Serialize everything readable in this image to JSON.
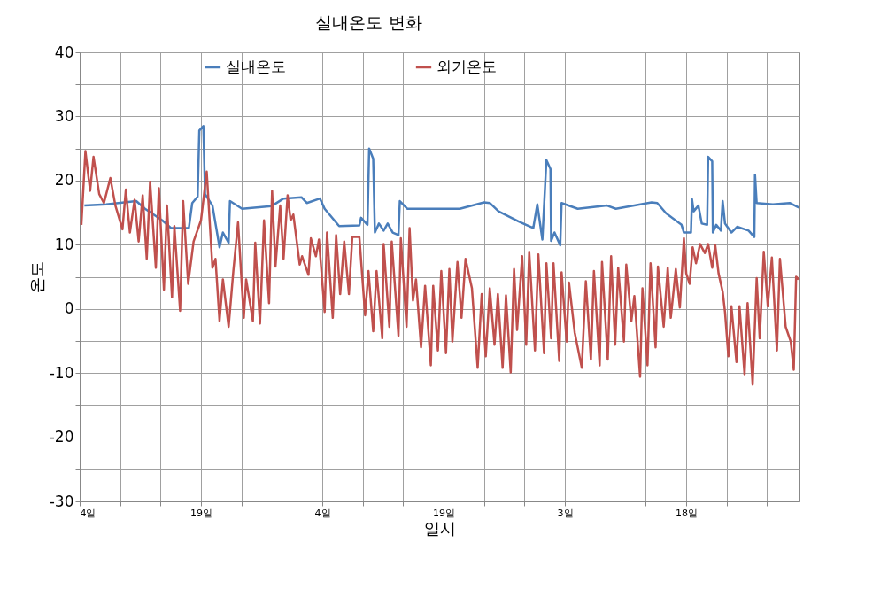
{
  "chart_data": {
    "type": "line",
    "title": "실내온도 변화",
    "xlabel": "일시",
    "ylabel": "온도",
    "xlim": [
      "--09-04",
      "--12-02"
    ],
    "xticks": [
      {
        "value": "--09-04",
        "label": "4일"
      },
      {
        "value": "--09-09",
        "label": null
      },
      {
        "value": "--09-14",
        "label": null
      },
      {
        "value": "--09-19",
        "label": "19일"
      },
      {
        "value": "--09-24",
        "label": null
      },
      {
        "value": "--09-29",
        "label": null
      },
      {
        "value": "--10-04",
        "label": "4일"
      },
      {
        "value": "--10-09",
        "label": null
      },
      {
        "value": "--10-14",
        "label": null
      },
      {
        "value": "--10-19",
        "label": "19일"
      },
      {
        "value": "--10-24",
        "label": null
      },
      {
        "value": "--10-29",
        "label": null
      },
      {
        "value": "--11-03",
        "label": "3일"
      },
      {
        "value": "--11-08",
        "label": null
      },
      {
        "value": "--11-13",
        "label": null
      },
      {
        "value": "--11-18",
        "label": "18일"
      },
      {
        "value": "--11-23",
        "label": null
      },
      {
        "value": "--11-28",
        "label": null
      }
    ],
    "ylim": [
      -30,
      40
    ],
    "yticks": [
      -30,
      {
        "value": -25,
        "label": null
      },
      -20,
      {
        "value": -15,
        "label": null
      },
      -10,
      {
        "value": -5,
        "label": null
      },
      0,
      {
        "value": 5,
        "label": null
      },
      10,
      {
        "value": 15,
        "label": null
      },
      20,
      {
        "value": 25,
        "label": null
      },
      30,
      {
        "value": 35,
        "label": null
      },
      40
    ],
    "grid": true,
    "legend": "top",
    "line_style": "solid",
    "marker": "none",
    "series": [
      {
        "name": "실내온도",
        "color": "#4a7ebb",
        "x": [
          "--09-04T14:00",
          "--09-07T07:00",
          "--09-11T00:00",
          "--09-12T02:00",
          "--09-14T05:00",
          "--09-15T07:00",
          "--09-17T12:00",
          "--09-17T22:00",
          "--09-18T14:00",
          "--09-18T19:00",
          "--09-19T07:00",
          "--09-19T12:00",
          "--09-20T10:00",
          "--09-21T07:00",
          "--09-21T17:00",
          "--09-22T10:00",
          "--09-22T14:00",
          "--09-24T02:00",
          "--09-27T17:00",
          "--09-29T05:00",
          "--10-01T10:00",
          "--10-02T02:00",
          "--10-03T17:00",
          "--10-04T07:00",
          "--10-06T02:00",
          "--10-08T14:00",
          "--10-08T19:00",
          "--10-09T14:00",
          "--10-09T19:00",
          "--10-10T07:00",
          "--10-10T12:00",
          "--10-11T00:00",
          "--10-11T14:00",
          "--10-12T02:00",
          "--10-12T17:00",
          "--10-13T10:00",
          "--10-13T14:00",
          "--10-14T12:00",
          "--10-18T12:00",
          "--10-21T00:00",
          "--10-24T00:00",
          "--10-24T17:00",
          "--10-25T19:00",
          "--10-28T07:00",
          "--10-30T02:00",
          "--10-30T14:00",
          "--10-31T05:00",
          "--10-31T17:00",
          "--11-01T05:00",
          "--11-01T07:00",
          "--11-01T17:00",
          "--11-02T10:00",
          "--11-02T14:00",
          "--11-04T14:00",
          "--11-08T05:00",
          "--11-09T07:00",
          "--11-13T17:00",
          "--11-14T10:00",
          "--11-15T12:00",
          "--11-17T10:00",
          "--11-17T17:00",
          "--11-18T14:00",
          "--11-18T17:00",
          "--11-18T22:00",
          "--11-19T12:00",
          "--11-19T22:00",
          "--11-20T14:00",
          "--11-20T17:00",
          "--11-21T05:00",
          "--11-21T07:00",
          "--11-21T17:00",
          "--11-22T07:00",
          "--11-22T12:00",
          "--11-22T19:00",
          "--11-23T14:00",
          "--11-24T07:00",
          "--11-25T17:00",
          "--11-26T10:00",
          "--11-26T12:00",
          "--11-26T17:00",
          "--11-28T17:00",
          "--11-30T19:00",
          "--12-01T22:00"
        ],
        "values": [
          16.1,
          16.3,
          16.8,
          15.6,
          13.8,
          12.6,
          12.6,
          16.5,
          17.5,
          27.8,
          28.5,
          17.9,
          16.1,
          9.6,
          11.9,
          10.3,
          16.8,
          15.6,
          16.0,
          17.2,
          17.4,
          16.5,
          17.2,
          15.6,
          12.9,
          13.0,
          14.2,
          13.1,
          25.0,
          23.4,
          11.9,
          13.3,
          12.2,
          13.3,
          11.9,
          11.5,
          16.8,
          15.6,
          15.6,
          15.6,
          16.6,
          16.5,
          15.2,
          13.6,
          12.6,
          16.3,
          10.8,
          23.2,
          21.8,
          10.6,
          11.9,
          9.9,
          16.5,
          15.6,
          16.1,
          15.6,
          16.6,
          16.5,
          14.9,
          13.1,
          11.9,
          11.9,
          17.1,
          15.2,
          16.1,
          13.3,
          13.1,
          23.7,
          23.0,
          11.9,
          13.1,
          12.2,
          16.8,
          13.3,
          11.9,
          12.8,
          12.2,
          11.2,
          20.9,
          16.5,
          16.3,
          16.5,
          15.8
        ]
      },
      {
        "name": "외기온도",
        "color": "#c0504d",
        "x": [
          "--09-04T05:00",
          "--09-04T17:00",
          "--09-05T07:00",
          "--09-05T17:00",
          "--09-06T10:00",
          "--09-07T00:00",
          "--09-07T19:00",
          "--09-08T10:00",
          "--09-09T07:00",
          "--09-09T17:00",
          "--09-10T05:00",
          "--09-10T19:00",
          "--09-11T07:00",
          "--09-11T19:00",
          "--09-12T07:00",
          "--09-12T17:00",
          "--09-13T10:00",
          "--09-13T19:00",
          "--09-14T10:00",
          "--09-14T19:00",
          "--09-15T10:00",
          "--09-15T17:00",
          "--09-16T10:00",
          "--09-16T19:00",
          "--09-17T10:00",
          "--09-18T02:00",
          "--09-19T00:00",
          "--09-19T17:00",
          "--09-20T10:00",
          "--09-20T19:00",
          "--09-21T07:00",
          "--09-21T17:00",
          "--09-22T10:00",
          "--09-23T00:00",
          "--09-23T14:00",
          "--09-24T07:00",
          "--09-24T14:00",
          "--09-25T10:00",
          "--09-25T17:00",
          "--09-26T07:00",
          "--09-26T19:00",
          "--09-27T10:00",
          "--09-27T19:00",
          "--09-28T05:00",
          "--09-28T19:00",
          "--09-29T05:00",
          "--09-29T17:00",
          "--09-30T02:00",
          "--09-30T10:00",
          "--10-01T05:00",
          "--10-01T12:00",
          "--10-02T07:00",
          "--10-02T14:00",
          "--10-03T05:00",
          "--10-03T14:00",
          "--10-04T07:00",
          "--10-04T14:00",
          "--10-05T07:00",
          "--10-05T17:00",
          "--10-06T05:00",
          "--10-06T17:00",
          "--10-07T07:00",
          "--10-07T17:00",
          "--10-08T14:00",
          "--10-09T07:00",
          "--10-09T17:00",
          "--10-10T07:00",
          "--10-10T17:00",
          "--10-11T10:00",
          "--10-11T14:00",
          "--10-12T07:00",
          "--10-12T14:00",
          "--10-13T10:00",
          "--10-13T17:00",
          "--10-14T10:00",
          "--10-14T19:00",
          "--10-15T05:00",
          "--10-15T14:00",
          "--10-16T05:00",
          "--10-16T17:00",
          "--10-17T10:00",
          "--10-17T17:00",
          "--10-18T07:00",
          "--10-18T17:00",
          "--10-19T07:00",
          "--10-19T17:00",
          "--10-20T02:00",
          "--10-20T17:00",
          "--10-21T05:00",
          "--10-21T17:00",
          "--10-22T12:00",
          "--10-23T05:00",
          "--10-23T17:00",
          "--10-24T05:00",
          "--10-24T17:00",
          "--10-25T07:00",
          "--10-25T17:00",
          "--10-26T07:00",
          "--10-26T17:00",
          "--10-27T07:00",
          "--10-27T17:00",
          "--10-28T02:00",
          "--10-28T17:00",
          "--10-29T05:00",
          "--10-29T14:00",
          "--10-30T07:00",
          "--10-30T17:00",
          "--10-31T10:00",
          "--10-31T17:00",
          "--11-01T07:00",
          "--11-01T14:00",
          "--11-02T07:00",
          "--11-02T14:00",
          "--11-03T05:00",
          "--11-03T12:00",
          "--11-04T05:00",
          "--11-05T02:00",
          "--11-05T14:00",
          "--11-06T05:00",
          "--11-06T14:00",
          "--11-07T07:00",
          "--11-07T14:00",
          "--11-08T07:00",
          "--11-08T17:00",
          "--11-09T05:00",
          "--11-09T14:00",
          "--11-10T07:00",
          "--11-10T14:00",
          "--11-11T05:00",
          "--11-11T14:00",
          "--11-12T07:00",
          "--11-12T14:00",
          "--11-13T05:00",
          "--11-13T14:00",
          "--11-14T05:00",
          "--11-14T12:00",
          "--11-15T05:00",
          "--11-15T17:00",
          "--11-16T02:00",
          "--11-16T17:00",
          "--11-17T05:00",
          "--11-17T17:00",
          "--11-18T00:00",
          "--11-18T10:00",
          "--11-18T19:00",
          "--11-19T05:00",
          "--11-19T17:00",
          "--11-20T07:00",
          "--11-20T17:00",
          "--11-21T05:00",
          "--11-21T14:00",
          "--11-22T00:00",
          "--11-22T12:00",
          "--11-22T19:00",
          "--11-23T05:00",
          "--11-23T14:00",
          "--11-24T05:00",
          "--11-24T14:00",
          "--11-25T05:00",
          "--11-25T14:00",
          "--11-26T05:00",
          "--11-26T17:00",
          "--11-27T02:00",
          "--11-27T14:00",
          "--11-28T02:00",
          "--11-28T14:00",
          "--11-29T05:00",
          "--11-29T14:00",
          "--11-30T07:00",
          "--11-30T22:00",
          "--12-01T07:00",
          "--12-01T14:00",
          "--12-01T22:00"
        ],
        "values": [
          13.1,
          24.6,
          18.4,
          23.7,
          17.9,
          16.5,
          20.4,
          16.1,
          12.4,
          18.6,
          11.9,
          17.0,
          10.5,
          17.7,
          7.8,
          19.8,
          6.4,
          18.8,
          3.0,
          16.1,
          1.8,
          12.9,
          -0.3,
          16.8,
          3.9,
          10.5,
          13.8,
          21.4,
          6.4,
          7.8,
          -1.9,
          4.6,
          -2.8,
          5.9,
          13.5,
          -1.4,
          4.6,
          -1.9,
          10.3,
          -2.3,
          13.8,
          0.9,
          18.4,
          6.6,
          16.1,
          7.8,
          17.7,
          13.8,
          14.7,
          6.9,
          8.2,
          5.3,
          11.0,
          8.2,
          10.8,
          -0.5,
          11.9,
          -1.4,
          11.5,
          2.3,
          10.5,
          2.3,
          11.2,
          11.2,
          -1.0,
          5.9,
          -3.5,
          5.9,
          -4.6,
          10.1,
          -2.8,
          10.5,
          -4.2,
          11.0,
          -2.8,
          12.6,
          1.3,
          4.6,
          -6.0,
          3.6,
          -8.8,
          3.6,
          -6.5,
          5.9,
          -6.9,
          6.2,
          -5.1,
          7.3,
          -1.4,
          7.8,
          3.2,
          -9.2,
          2.3,
          -7.4,
          3.2,
          -5.6,
          2.3,
          -9.2,
          2.1,
          -9.9,
          6.2,
          -3.3,
          8.2,
          -5.6,
          8.9,
          -6.5,
          8.5,
          -6.9,
          7.1,
          -4.6,
          7.1,
          -8.1,
          5.7,
          -5.1,
          4.1,
          -3.7,
          -9.2,
          4.3,
          -7.9,
          5.9,
          -8.8,
          7.3,
          -7.9,
          8.2,
          -5.6,
          6.4,
          -5.1,
          6.9,
          -1.9,
          2.0,
          -10.6,
          3.2,
          -8.8,
          7.1,
          -6.0,
          6.6,
          -2.8,
          6.4,
          -1.4,
          6.2,
          0.2,
          11.0,
          5.5,
          3.9,
          9.6,
          7.1,
          10.1,
          8.7,
          10.1,
          6.4,
          9.9,
          5.5,
          2.7,
          -0.5,
          -7.4,
          0.4,
          -8.3,
          0.4,
          -10.2,
          0.9,
          -11.8,
          4.8,
          -4.6,
          8.9,
          0.4,
          8.0,
          -6.5,
          7.8,
          -2.8,
          -5.1,
          -9.5,
          5.0,
          4.6
        ]
      }
    ]
  }
}
